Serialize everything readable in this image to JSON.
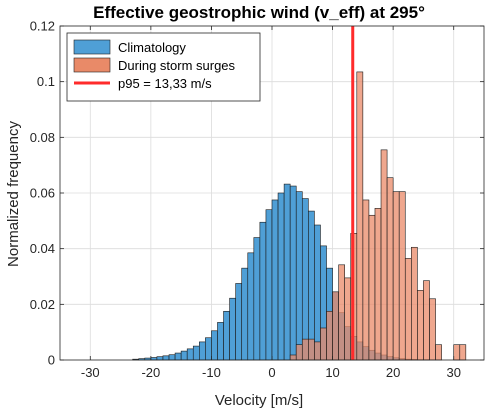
{
  "chart_data": {
    "type": "histogram",
    "title": "Effective geostrophic wind (v_eff) at 295°",
    "xlabel": "Velocity [m/s]",
    "ylabel": "Normalized frequency",
    "xlim": [
      -35,
      35
    ],
    "ylim": [
      0,
      0.12
    ],
    "xticks": [
      -30,
      -20,
      -10,
      0,
      10,
      20,
      30
    ],
    "yticks": [
      0,
      0.02,
      0.04,
      0.06,
      0.08,
      0.1,
      0.12
    ],
    "xtick_labels": [
      "-30",
      "-20",
      "-10",
      "0",
      "10",
      "20",
      "30"
    ],
    "ytick_labels": [
      "0",
      "0.02",
      "0.04",
      "0.06",
      "0.08",
      "0.1",
      "0.12"
    ],
    "grid": true,
    "legend_position": "top-left",
    "bin_width": 1,
    "series": [
      {
        "name": "Climatology",
        "color": "#4f9fd6",
        "bin_edges_start": [
          -23,
          -22,
          -21,
          -20,
          -19,
          -18,
          -17,
          -16,
          -15,
          -14,
          -13,
          -12,
          -11,
          -10,
          -9,
          -8,
          -7,
          -6,
          -5,
          -4,
          -3,
          -2,
          -1,
          0,
          1,
          2,
          3,
          4,
          5,
          6,
          7,
          8,
          9,
          10,
          11,
          12,
          13,
          14,
          15,
          16,
          17,
          18,
          19,
          20,
          21,
          22,
          23,
          24,
          25
        ],
        "values": [
          0.0003,
          0.0005,
          0.0007,
          0.0009,
          0.0012,
          0.0015,
          0.0019,
          0.0025,
          0.0032,
          0.004,
          0.005,
          0.0065,
          0.008,
          0.0105,
          0.0135,
          0.0175,
          0.0222,
          0.0275,
          0.033,
          0.0385,
          0.044,
          0.0495,
          0.054,
          0.0575,
          0.06,
          0.0632,
          0.0625,
          0.0605,
          0.058,
          0.0535,
          0.0485,
          0.041,
          0.033,
          0.0245,
          0.017,
          0.012,
          0.0085,
          0.0065,
          0.0048,
          0.0035,
          0.0025,
          0.0018,
          0.0012,
          0.0008,
          0.0005,
          0.0003,
          0.0002,
          0.0001,
          0.0001
        ]
      },
      {
        "name": "During storm surges",
        "color": "#e98a68",
        "bin_edges_start": [
          3,
          4,
          5,
          6,
          7,
          8,
          9,
          10,
          11,
          12,
          13,
          14,
          15,
          16,
          17,
          18,
          19,
          20,
          21,
          22,
          23,
          24,
          25,
          26,
          27,
          28,
          29,
          30,
          31
        ],
        "values": [
          0.0018,
          0.0055,
          0.0075,
          0.0075,
          0.0065,
          0.0115,
          0.0175,
          0.0245,
          0.0342,
          0.0295,
          0.0455,
          0.1035,
          0.0575,
          0.052,
          0.0545,
          0.0755,
          0.0655,
          0.0605,
          0.0605,
          0.0365,
          0.0405,
          0.025,
          0.0285,
          0.022,
          0.0055,
          0.0,
          0.0,
          0.0055,
          0.0055
        ]
      }
    ],
    "reference_lines": [
      {
        "name": "p95 = 13,33 m/s",
        "x": 13.33,
        "color": "#ff2b2b"
      }
    ]
  }
}
